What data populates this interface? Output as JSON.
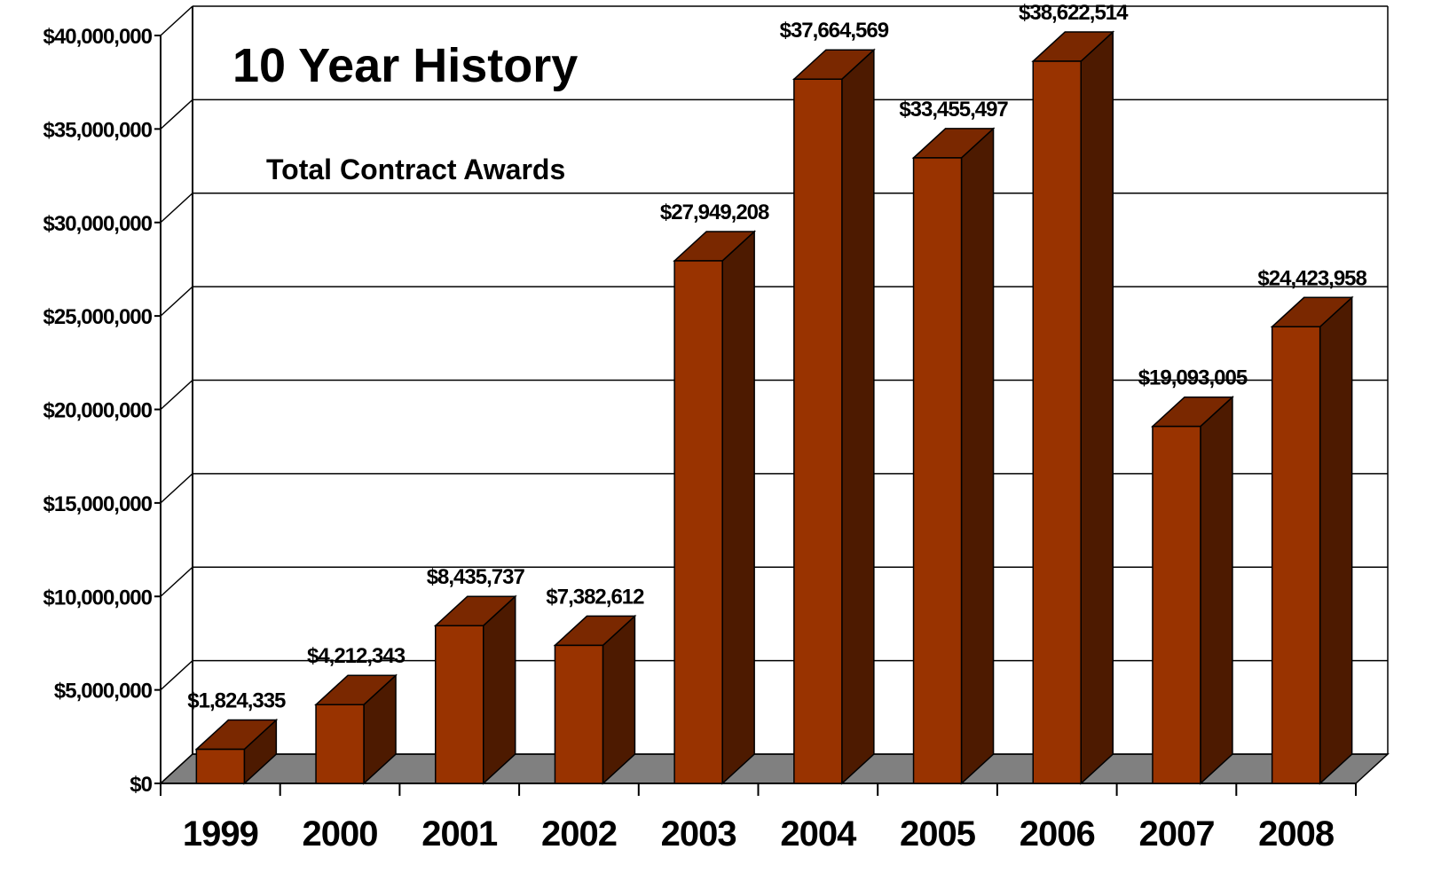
{
  "chart_data": {
    "type": "bar3d",
    "title": "10 Year History",
    "subtitle": "Total Contract Awards",
    "categories": [
      "1999",
      "2000",
      "2001",
      "2002",
      "2003",
      "2004",
      "2005",
      "2006",
      "2007",
      "2008"
    ],
    "values": [
      1824335,
      4212343,
      8435737,
      7382612,
      27949208,
      37664569,
      33455497,
      38622514,
      19093005,
      24423958
    ],
    "value_labels": [
      "$1,824,335",
      "$4,212,343",
      "$8,435,737",
      "$7,382,612",
      "$27,949,208",
      "$37,664,569",
      "$33,455,497",
      "$38,622,514",
      "$19,093,005",
      "$24,423,958"
    ],
    "colors": {
      "front": "#993300",
      "top": "#7a2800",
      "side": "#4d1a00",
      "floor": "#808080"
    },
    "ylim": [
      0,
      40000000
    ],
    "yticks": [
      {
        "value": 0,
        "label": "$0"
      },
      {
        "value": 5000000,
        "label": "$5,000,000"
      },
      {
        "value": 10000000,
        "label": "$10,000,000"
      },
      {
        "value": 15000000,
        "label": "$15,000,000"
      },
      {
        "value": 20000000,
        "label": "$20,000,000"
      },
      {
        "value": 25000000,
        "label": "$25,000,000"
      },
      {
        "value": 30000000,
        "label": "$30,000,000"
      },
      {
        "value": 35000000,
        "label": "$35,000,000"
      },
      {
        "value": 40000000,
        "label": "$40,000,000"
      }
    ],
    "grid": true
  }
}
